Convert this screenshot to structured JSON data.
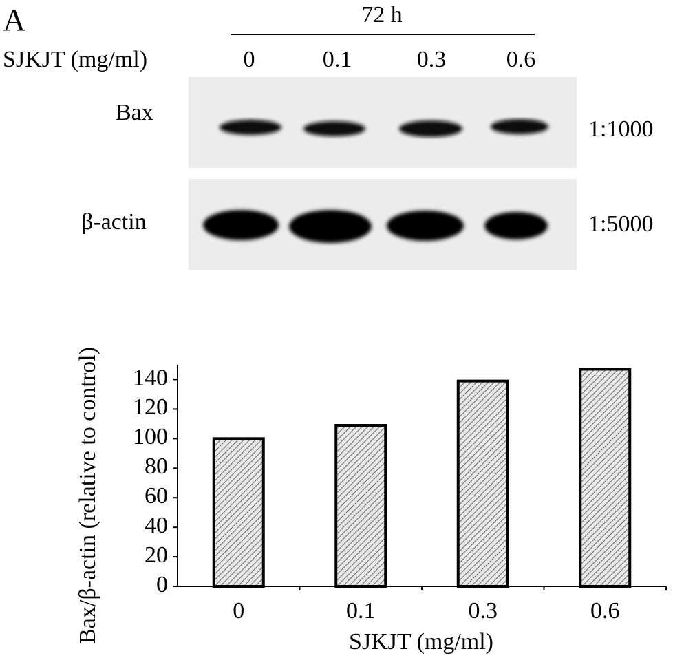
{
  "figure": {
    "panel_label": "A",
    "time": "72 h",
    "row_label": "SJKJT (mg/ml)",
    "lanes": [
      "0",
      "0.1",
      "0.3",
      "0.6"
    ],
    "blots": [
      {
        "name": "Bax",
        "dilution": "1:1000"
      },
      {
        "name": "β-actin",
        "dilution": "1:5000"
      }
    ]
  },
  "chart_data": {
    "type": "bar",
    "y_label": "Bax/β-actin (relative to control)",
    "x_label": "SJKJT (mg/ml)",
    "categories": [
      "0",
      "0.1",
      "0.3",
      "0.6"
    ],
    "values": [
      100,
      109,
      139,
      147
    ],
    "ylim": [
      0,
      150
    ],
    "yticks": [
      0,
      20,
      40,
      60,
      80,
      100,
      120,
      140
    ]
  }
}
